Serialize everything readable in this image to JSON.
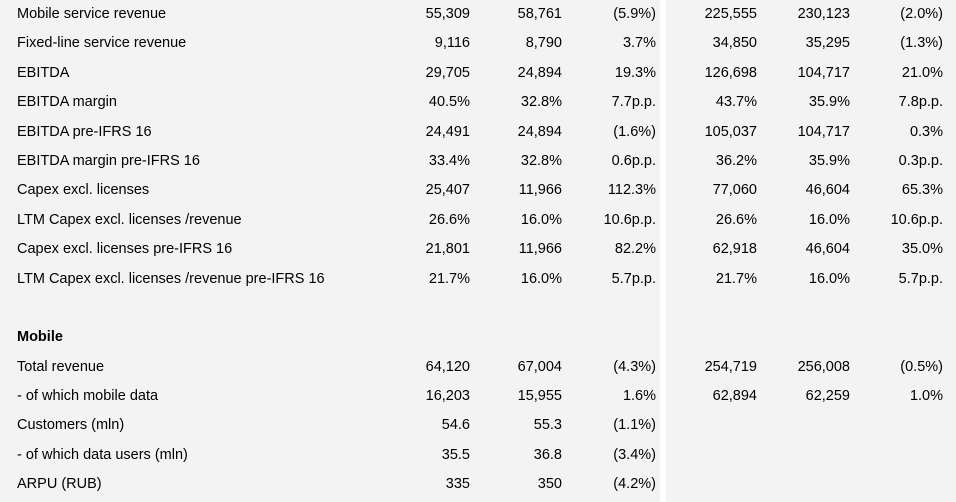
{
  "rows": [
    {
      "label": "Mobile service revenue",
      "values": [
        "55,309",
        "58,761",
        "(5.9%)",
        "225,555",
        "230,123",
        "(2.0%)"
      ]
    },
    {
      "label": "Fixed-line service revenue",
      "values": [
        "9,116",
        "8,790",
        "3.7%",
        "34,850",
        "35,295",
        "(1.3%)"
      ]
    },
    {
      "label": "EBITDA",
      "values": [
        "29,705",
        "24,894",
        "19.3%",
        "126,698",
        "104,717",
        "21.0%"
      ]
    },
    {
      "label": "EBITDA margin",
      "values": [
        "40.5%",
        "32.8%",
        "7.7p.p.",
        "43.7%",
        "35.9%",
        "7.8p.p."
      ]
    },
    {
      "label": "EBITDA pre-IFRS 16",
      "values": [
        "24,491",
        "24,894",
        "(1.6%)",
        "105,037",
        "104,717",
        "0.3%"
      ]
    },
    {
      "label": "EBITDA margin pre-IFRS 16",
      "values": [
        "33.4%",
        "32.8%",
        "0.6p.p.",
        "36.2%",
        "35.9%",
        "0.3p.p."
      ]
    },
    {
      "label": "Capex excl. licenses",
      "values": [
        "25,407",
        "11,966",
        "112.3%",
        "77,060",
        "46,604",
        "65.3%"
      ]
    },
    {
      "label": "LTM Capex excl. licenses /revenue",
      "values": [
        "26.6%",
        "16.0%",
        "10.6p.p.",
        "26.6%",
        "16.0%",
        "10.6p.p."
      ]
    },
    {
      "label": "Capex excl. licenses pre-IFRS 16",
      "values": [
        "21,801",
        "11,966",
        "82.2%",
        "62,918",
        "46,604",
        "35.0%"
      ]
    },
    {
      "label": "LTM Capex excl. licenses /revenue pre-IFRS 16",
      "values": [
        "21.7%",
        "16.0%",
        "5.7p.p.",
        "21.7%",
        "16.0%",
        "5.7p.p."
      ]
    },
    {
      "label": "",
      "values": [
        "",
        "",
        "",
        "",
        "",
        ""
      ],
      "spacer": true
    },
    {
      "label": "Mobile",
      "values": [
        "",
        "",
        "",
        "",
        "",
        ""
      ],
      "section": true
    },
    {
      "label": "Total revenue",
      "values": [
        "64,120",
        "67,004",
        "(4.3%)",
        "254,719",
        "256,008",
        "(0.5%)"
      ]
    },
    {
      "label": "- of which mobile data",
      "values": [
        "16,203",
        "15,955",
        "1.6%",
        "62,894",
        "62,259",
        "1.0%"
      ]
    },
    {
      "label": "Customers (mln)",
      "values": [
        "54.6",
        "55.3",
        "(1.1%)",
        "",
        "",
        ""
      ]
    },
    {
      "label": "- of which data users (mln)",
      "values": [
        "35.5",
        "36.8",
        "(3.4%)",
        "",
        "",
        ""
      ]
    },
    {
      "label": "ARPU (RUB)",
      "values": [
        "335",
        "350",
        "(4.2%)",
        "",
        "",
        ""
      ]
    }
  ]
}
